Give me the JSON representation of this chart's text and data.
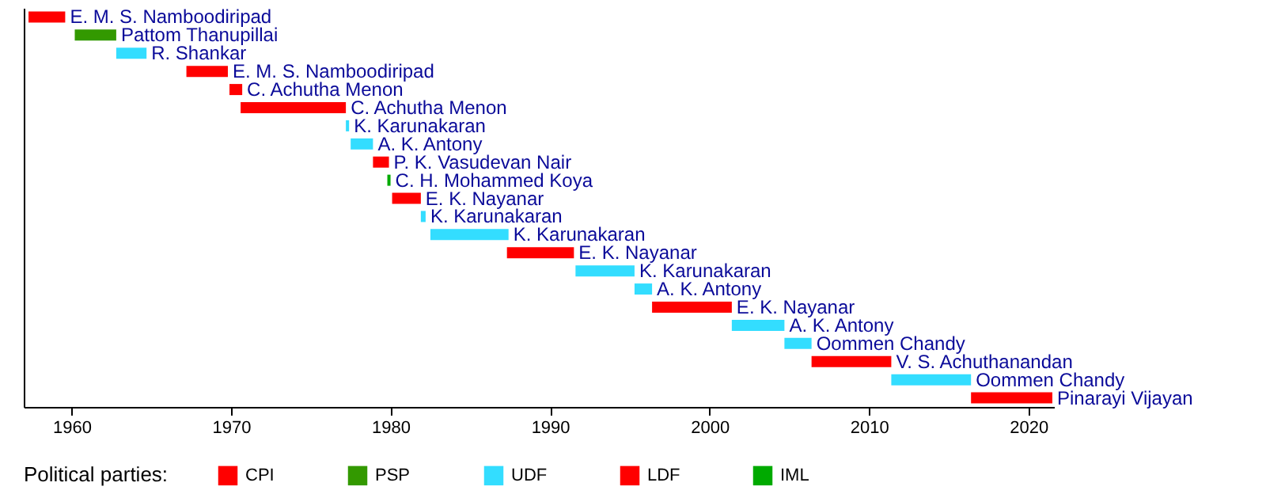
{
  "chart_data": {
    "type": "bar",
    "orientation": "horizontal",
    "legend_title": "Political parties:",
    "legend": "bottom",
    "tick_labels": "x",
    "categories": [
      null,
      null,
      null,
      null,
      null,
      null,
      null,
      null,
      null,
      null,
      null,
      null,
      null,
      null,
      null,
      null,
      null,
      null,
      null,
      null,
      null,
      null
    ],
    "annotations": [
      {
        "text": "E. M. S. Namboodiripad",
        "x": 1959.6
      },
      {
        "text": "Pattom Thanupillai",
        "x": 1962.8
      },
      {
        "text": "R. Shankar",
        "x": 1964.7
      },
      {
        "text": "E. M. S. Namboodiripad",
        "x": 1969.8
      },
      {
        "text": "C. Achutha Menon",
        "x": 1970.7
      },
      {
        "text": "C. Achutha Menon",
        "x": 1977.2
      },
      {
        "text": "K. Karunakaran",
        "x": 1977.4
      },
      {
        "text": "A. K. Antony",
        "x": 1978.9
      },
      {
        "text": "P. K. Vasudevan Nair",
        "x": 1979.9
      },
      {
        "text": "C. H. Mohammed Koya",
        "x": 1980.0
      },
      {
        "text": "E. K. Nayanar",
        "x": 1981.9
      },
      {
        "text": "K. Karunakaran",
        "x": 1982.2
      },
      {
        "text": "K. Karunakaran",
        "x": 1987.4
      },
      {
        "text": "E. K. Nayanar",
        "x": 1991.5
      },
      {
        "text": "K. Karunakaran",
        "x": 1995.3
      },
      {
        "text": "A. K. Antony",
        "x": 1996.4
      },
      {
        "text": "E. K. Nayanar",
        "x": 2001.4
      },
      {
        "text": "A. K. Antony",
        "x": 2004.7
      },
      {
        "text": "Oommen Chandy",
        "x": 2006.4
      },
      {
        "text": "V. S. Achuthanandan",
        "x": 2011.4
      },
      {
        "text": "Oommen Chandy",
        "x": 2016.4
      },
      {
        "text": "Pinarayi Vijayan",
        "x": 2021.5
      }
    ],
    "series": [
      {
        "name": "CPI",
        "color": "#ff0000",
        "base": [
          1957.3,
          null,
          null,
          1967.2,
          1969.9,
          1970.6,
          null,
          null,
          1978.9,
          null,
          null,
          null,
          null,
          null,
          null,
          null,
          null,
          null,
          null,
          null,
          null,
          null
        ],
        "values": [
          2.3,
          null,
          null,
          2.6,
          0.8,
          6.6,
          null,
          null,
          1.0,
          null,
          null,
          null,
          null,
          null,
          null,
          null,
          null,
          null,
          null,
          null,
          null,
          null
        ]
      },
      {
        "name": "PSP",
        "color": "#339900",
        "base": [
          null,
          1960.2,
          null,
          null,
          null,
          null,
          null,
          null,
          null,
          null,
          null,
          null,
          null,
          null,
          null,
          null,
          null,
          null,
          null,
          null,
          null,
          null
        ],
        "values": [
          null,
          2.6,
          null,
          null,
          null,
          null,
          null,
          null,
          null,
          null,
          null,
          null,
          null,
          null,
          null,
          null,
          null,
          null,
          null,
          null,
          null,
          null
        ]
      },
      {
        "name": "UDF",
        "color": "#33ddff",
        "base": [
          null,
          null,
          1962.8,
          null,
          null,
          null,
          1977.2,
          1977.5,
          null,
          null,
          null,
          1981.9,
          1982.5,
          null,
          1991.6,
          1995.3,
          null,
          2001.4,
          2004.7,
          null,
          2011.4,
          null
        ],
        "values": [
          null,
          null,
          1.9,
          null,
          null,
          null,
          0.2,
          1.4,
          null,
          null,
          null,
          0.3,
          4.9,
          null,
          3.7,
          1.1,
          null,
          3.3,
          1.7,
          null,
          5.0,
          null
        ]
      },
      {
        "name": "LDF",
        "color": "#ff0000",
        "base": [
          null,
          null,
          null,
          null,
          null,
          null,
          null,
          null,
          null,
          null,
          1980.1,
          null,
          null,
          1987.3,
          null,
          null,
          1996.4,
          null,
          null,
          2006.4,
          null,
          2016.4
        ],
        "values": [
          null,
          null,
          null,
          null,
          null,
          null,
          null,
          null,
          null,
          null,
          1.8,
          null,
          null,
          4.2,
          null,
          null,
          5.0,
          null,
          null,
          5.0,
          null,
          5.1
        ]
      },
      {
        "name": "IML",
        "color": "#00aa00",
        "base": [
          null,
          null,
          null,
          null,
          null,
          null,
          null,
          null,
          null,
          1979.8,
          null,
          null,
          null,
          null,
          null,
          null,
          null,
          null,
          null,
          null,
          null,
          null
        ],
        "values": [
          null,
          null,
          null,
          null,
          null,
          null,
          null,
          null,
          null,
          0.2,
          null,
          null,
          null,
          null,
          null,
          null,
          null,
          null,
          null,
          null,
          null,
          null
        ]
      }
    ],
    "xlim": [
      1957.0,
      2021.6
    ],
    "xticks": [
      1960,
      1970,
      1980,
      1990,
      2000,
      2010,
      2020
    ]
  }
}
